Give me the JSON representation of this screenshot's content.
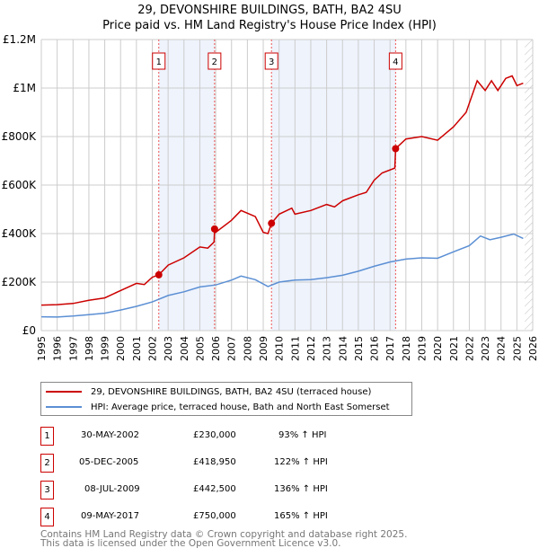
{
  "title": "29, DEVONSHIRE BUILDINGS, BATH, BA2 4SU",
  "subtitle": "Price paid vs. HM Land Registry's House Price Index (HPI)",
  "chart_data": {
    "type": "line",
    "title": "29, DEVONSHIRE BUILDINGS, BATH, BA2 4SU",
    "subtitle": "Price paid vs. HM Land Registry's House Price Index (HPI)",
    "xlim": [
      1995,
      2026
    ],
    "ylim": [
      0,
      1200000
    ],
    "x_ticks": [
      "1995",
      "1996",
      "1997",
      "1998",
      "1999",
      "2000",
      "2001",
      "2002",
      "2003",
      "2004",
      "2005",
      "2006",
      "2007",
      "2008",
      "2009",
      "2010",
      "2011",
      "2012",
      "2013",
      "2014",
      "2015",
      "2016",
      "2017",
      "2018",
      "2019",
      "2020",
      "2021",
      "2022",
      "2023",
      "2024",
      "2025",
      "2026"
    ],
    "y_ticks": [
      {
        "v": 0,
        "label": "£0"
      },
      {
        "v": 200000,
        "label": "£200K"
      },
      {
        "v": 400000,
        "label": "£400K"
      },
      {
        "v": 600000,
        "label": "£600K"
      },
      {
        "v": 800000,
        "label": "£800K"
      },
      {
        "v": 1000000,
        "label": "£1M"
      },
      {
        "v": 1200000,
        "label": "£1.2M"
      }
    ],
    "grid": true,
    "forecast_hatch_from": 2025.5,
    "colors": {
      "property": "#cc0000",
      "hpi": "#5b8fd4",
      "shade": "#eef3fc"
    },
    "series": [
      {
        "name": "29, DEVONSHIRE BUILDINGS, BATH, BA2 4SU (terraced house)",
        "key": "property",
        "x": [
          1995,
          1996,
          1997,
          1998,
          1999,
          2000,
          2001,
          2001.5,
          2002,
          2002.41,
          2003,
          2004,
          2005,
          2005.5,
          2005.9,
          2005.93,
          2006,
          2007,
          2007.6,
          2008.5,
          2009,
          2009.3,
          2009.52,
          2010,
          2010.8,
          2011,
          2012,
          2013,
          2013.5,
          2014,
          2015,
          2015.5,
          2016,
          2016.5,
          2017.3,
          2017.35,
          2018,
          2019,
          2020,
          2021,
          2021.8,
          2022.5,
          2023,
          2023.4,
          2023.8,
          2024.3,
          2024.7,
          2025,
          2025.4
        ],
        "y": [
          105000,
          107000,
          112000,
          125000,
          135000,
          165000,
          195000,
          190000,
          220000,
          230000,
          270000,
          300000,
          345000,
          340000,
          365000,
          418950,
          405000,
          455000,
          495000,
          470000,
          405000,
          400000,
          442500,
          480000,
          505000,
          480000,
          495000,
          520000,
          510000,
          535000,
          560000,
          570000,
          620000,
          650000,
          670000,
          750000,
          790000,
          800000,
          785000,
          840000,
          900000,
          1030000,
          990000,
          1030000,
          990000,
          1040000,
          1050000,
          1010000,
          1020000
        ]
      },
      {
        "name": "HPI: Average price, terraced house, Bath and North East Somerset",
        "key": "hpi",
        "x": [
          1995,
          1996,
          1997,
          1998,
          1999,
          2000,
          2001,
          2002,
          2003,
          2004,
          2005,
          2006,
          2007,
          2007.6,
          2008.5,
          2009.3,
          2010,
          2011,
          2012,
          2013,
          2014,
          2015,
          2016,
          2017,
          2018,
          2019,
          2020,
          2021,
          2022,
          2022.7,
          2023.3,
          2024,
          2024.8,
          2025.4
        ],
        "y": [
          57000,
          56000,
          60000,
          66000,
          72000,
          85000,
          100000,
          118000,
          145000,
          160000,
          180000,
          188000,
          208000,
          225000,
          210000,
          182000,
          200000,
          208000,
          210000,
          218000,
          228000,
          245000,
          265000,
          283000,
          295000,
          300000,
          298000,
          325000,
          350000,
          390000,
          375000,
          385000,
          398000,
          380000
        ]
      }
    ],
    "sales": [
      {
        "num": "1",
        "x": 2002.41,
        "date": "30-MAY-2002",
        "price": "£230,000",
        "price_value": 230000,
        "hpi": "93% ↑ HPI"
      },
      {
        "num": "2",
        "x": 2005.93,
        "date": "05-DEC-2005",
        "price": "£418,950",
        "price_value": 418950,
        "hpi": "122% ↑ HPI"
      },
      {
        "num": "3",
        "x": 2009.52,
        "date": "08-JUL-2009",
        "price": "£442,500",
        "price_value": 442500,
        "hpi": "136% ↑ HPI"
      },
      {
        "num": "4",
        "x": 2017.35,
        "date": "09-MAY-2017",
        "price": "£750,000",
        "price_value": 750000,
        "hpi": "165% ↑ HPI"
      }
    ],
    "shaded_ranges": [
      [
        2002.41,
        2005.93
      ],
      [
        2009.52,
        2017.35
      ]
    ]
  },
  "legend": {
    "property": "29, DEVONSHIRE BUILDINGS, BATH, BA2 4SU (terraced house)",
    "hpi": "HPI: Average price, terraced house, Bath and North East Somerset"
  },
  "footer": [
    "Contains HM Land Registry data © Crown copyright and database right 2025.",
    "This data is licensed under the Open Government Licence v3.0."
  ]
}
